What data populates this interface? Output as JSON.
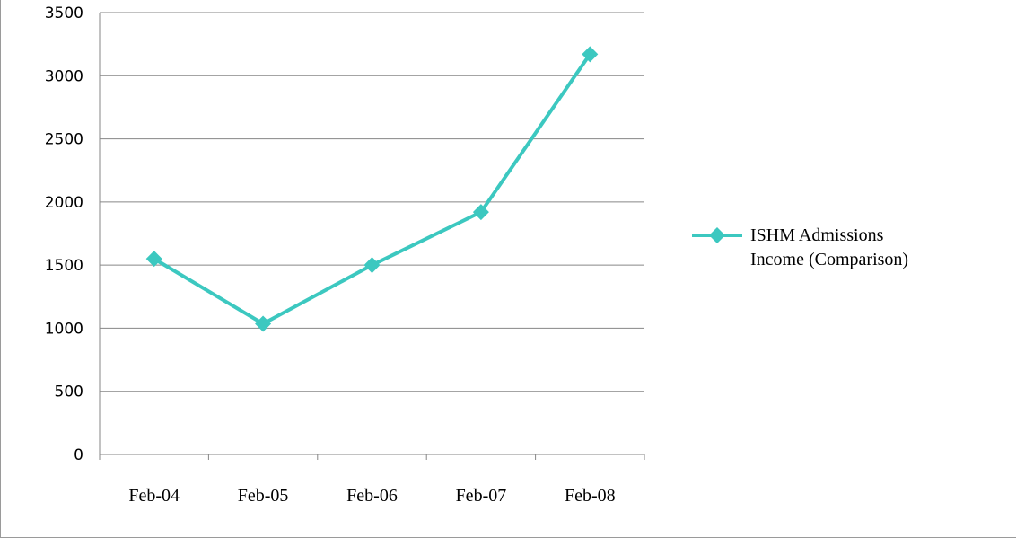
{
  "colors": {
    "series": "#3cc8c0",
    "grid": "#868686",
    "frame": "#9a9a9a"
  },
  "chart_data": {
    "type": "line",
    "title": "",
    "xlabel": "",
    "ylabel": "",
    "categories": [
      "Feb-04",
      "Feb-05",
      "Feb-06",
      "Feb-07",
      "Feb-08"
    ],
    "series": [
      {
        "name": "ISHM Admissions\nIncome (Comparison)",
        "values": [
          1550,
          1035,
          1500,
          1920,
          3170
        ],
        "marker": "diamond"
      }
    ],
    "ylim": [
      0,
      3500
    ],
    "yticks": [
      0,
      500,
      1000,
      1500,
      2000,
      2500,
      3000,
      3500
    ],
    "grid": true,
    "legend_position": "right"
  }
}
